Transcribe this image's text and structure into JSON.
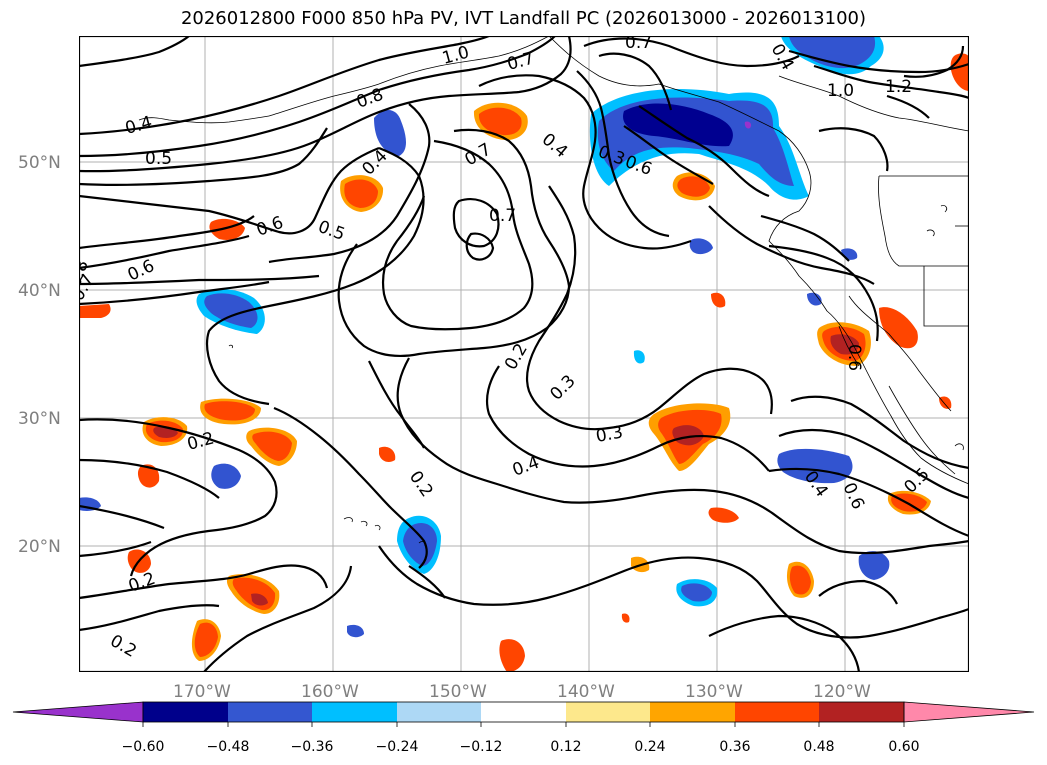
{
  "title": "2026012800 F000 850 hPa PV, IVT Landfall PC (2026013000 - 2026013100)",
  "map": {
    "lat_labels": [
      "50°N",
      "40°N",
      "30°N",
      "20°N"
    ],
    "lon_labels": [
      "170°W",
      "160°W",
      "150°W",
      "140°W",
      "130°W",
      "120°W"
    ],
    "contour_labels": [
      "1.0",
      "0.7",
      "0.8",
      "0.4",
      "0.5",
      "0.4",
      "0.6",
      "0.5",
      "0.7",
      "0.7",
      "0.4",
      "0.3",
      "0.6",
      "0.8",
      "0.7",
      "0.6",
      "0.2",
      "0.3",
      "0.3",
      "0.2",
      "0.2",
      "0.4",
      "0.2",
      "0.2",
      "0.4",
      "0.6",
      "0.5",
      "1.0",
      "1.2",
      "0.4",
      "0.7",
      "0.6"
    ],
    "colors": {
      "pos_light": "#ffe98a",
      "pos_orange": "#ff9e00",
      "pos_red": "#ff4500",
      "pos_dark": "#b22222",
      "pos_pink": "#ff88aa",
      "neg_light": "#add8ff",
      "neg_cyan": "#00bfff",
      "neg_blue": "#3254d0",
      "neg_navy": "#000090",
      "neg_purple": "#9932cc"
    }
  },
  "colorbar": {
    "tick_labels": [
      "−0.60",
      "−0.48",
      "−0.36",
      "−0.24",
      "−0.12",
      "0.12",
      "0.24",
      "0.36",
      "0.48",
      "0.60"
    ],
    "bins": [
      "#9932cc",
      "#00008b",
      "#3457d0",
      "#00bfff",
      "#add8f5",
      "#ffffff",
      "#fde88c",
      "#ffa500",
      "#ff4500",
      "#b22222",
      "#ff88aa"
    ]
  }
}
